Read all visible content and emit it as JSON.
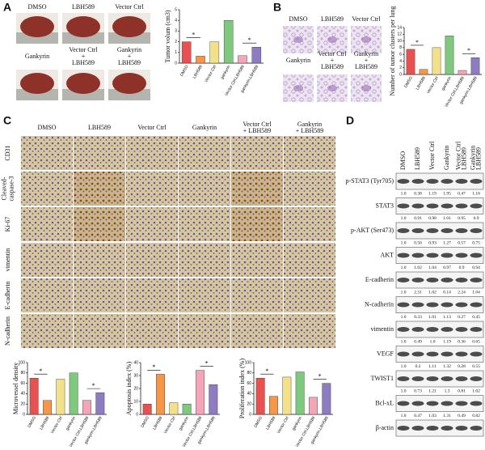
{
  "panel_labels": [
    "A",
    "B",
    "C",
    "D"
  ],
  "panel_a": {
    "photo_labels": [
      [
        "DMSO"
      ],
      [
        "LBH589"
      ],
      [
        "Vector Ctrl"
      ],
      [
        "Gankyrin"
      ],
      [
        "Vector Ctrl",
        "+",
        "LBH589"
      ],
      [
        "Gankyrin",
        "+",
        "LBH589"
      ]
    ]
  },
  "panel_b": {
    "photo_labels": [
      [
        "DMSO"
      ],
      [
        "LBH589"
      ],
      [
        "Vector Ctrl"
      ],
      [
        "Gankyrin"
      ],
      [
        "Vector Ctrl",
        "+",
        "LBH589"
      ],
      [
        "Gankyrin",
        "+",
        "LBH589"
      ]
    ]
  },
  "panel_c": {
    "column_labels": [
      [
        "DMSO"
      ],
      [
        "LBH589"
      ],
      [
        "Vector Ctrl"
      ],
      [
        "Gankyrin"
      ],
      [
        "Vector Ctrl",
        "+ LBH589"
      ],
      [
        "Gankyrin",
        "+ LBH589"
      ]
    ],
    "row_labels": [
      [
        "CD31"
      ],
      [
        "Cleaved-",
        "caspase-3"
      ],
      [
        "Ki-67"
      ],
      [
        "vimentin"
      ],
      [
        "E-cadherin"
      ],
      [
        "N-cadherin"
      ]
    ]
  },
  "panel_d": {
    "column_labels": [
      [
        "DMSO"
      ],
      [
        "LBH589"
      ],
      [
        "Vector Ctrl"
      ],
      [
        "Gankyrin"
      ],
      [
        "Vector Ctrl",
        "LBH589"
      ],
      [
        "Gankyrin",
        "LBH589"
      ]
    ],
    "rows": [
      {
        "label": "p-STAT3 (Tyr705)",
        "values": [
          "1.0",
          "0.38",
          "1.19",
          "1.95",
          "0.47",
          "1.16"
        ]
      },
      {
        "label": "STAT3",
        "values": [
          "1.0",
          "0.91",
          "0.98",
          "1.01",
          "0.95",
          "0.9"
        ]
      },
      {
        "label": "p-AKT (Ser473)",
        "values": [
          "1.0",
          "0.56",
          "0.93",
          "1.27",
          "0.57",
          "0.75"
        ]
      },
      {
        "label": "AKT",
        "values": [
          "1.0",
          "1.02",
          "1.04",
          "0.97",
          "0.9",
          "0.94"
        ]
      },
      {
        "label": "E-cadherin",
        "values": [
          "1.0",
          "2.31",
          "1.02",
          "0.14",
          "2.24",
          "1.04"
        ]
      },
      {
        "label": "N-cadherin",
        "values": [
          "1.0",
          "0.33",
          "1.01",
          "1.13",
          "0.27",
          "0.45"
        ]
      },
      {
        "label": "vimentin",
        "values": [
          "1.0",
          "0.49",
          "1.0",
          "1.19",
          "0.36",
          "0.65"
        ]
      },
      {
        "label": "VEGF",
        "values": [
          "1.0",
          "0.2",
          "1.11",
          "1.32",
          "0.28",
          "0.55"
        ]
      },
      {
        "label": "TWIST1",
        "values": [
          "1.0",
          "0.73",
          "1.21",
          "1.3",
          "0.81",
          "1.02"
        ]
      },
      {
        "label": "Bcl-xL",
        "values": [
          "1.0",
          "0.47",
          "1.03",
          "1.31",
          "0.49",
          "0.82"
        ]
      },
      {
        "label": "β-actin"
      }
    ]
  },
  "chart_data": [
    {
      "type": "bar",
      "ylabel": "Tumor volum (cm3)",
      "categories": [
        "DMSO",
        "LBH589",
        "Vector Ctrl",
        "gankyrin",
        "Vector Ctrl,LBH589",
        "gankyrin,LBH589"
      ],
      "values": [
        2.0,
        0.65,
        2.0,
        4.0,
        0.7,
        1.5
      ],
      "colors": [
        "#e8514f",
        "#f79646",
        "#f2e08a",
        "#7fc97f",
        "#f4a6b8",
        "#8e7cc3"
      ],
      "ylim": [
        0,
        5
      ],
      "yticks": [
        0,
        1,
        2,
        3,
        4,
        5
      ],
      "annotations": [
        "*",
        "*"
      ]
    },
    {
      "type": "bar",
      "ylabel": "Number of tumor clusters per lung",
      "categories": [
        "DMSO",
        "LBH589",
        "Vector Ctrl",
        "gankyrin",
        "Vector Ctrl,LBH589",
        "gankyrin,LBH589"
      ],
      "values": [
        7.5,
        1.5,
        8,
        11.5,
        1.2,
        5
      ],
      "colors": [
        "#e8514f",
        "#f79646",
        "#f2e08a",
        "#7fc97f",
        "#f4a6b8",
        "#8e7cc3"
      ],
      "ylim": [
        0,
        14
      ],
      "yticks": [
        0,
        2,
        4,
        6,
        8,
        10,
        12,
        14
      ],
      "annotations": [
        "*",
        "*"
      ]
    },
    {
      "type": "bar",
      "ylabel": "Microvessel density",
      "categories": [
        "DMSO",
        "LBH589",
        "Vector Ctrl",
        "gankyrin",
        "Vector Ctrl,LBH589",
        "gankyrin,LBH589"
      ],
      "values": [
        70,
        27,
        68,
        80,
        27,
        42
      ],
      "colors": [
        "#e8514f",
        "#f79646",
        "#f2e08a",
        "#7fc97f",
        "#f4a6b8",
        "#8e7cc3"
      ],
      "ylim": [
        0,
        100
      ],
      "yticks": [
        0,
        20,
        40,
        60,
        80,
        100
      ],
      "annotations": [
        "*",
        "*"
      ]
    },
    {
      "type": "bar",
      "ylabel": "Apoptosis index (%)",
      "categories": [
        "DMSO",
        "LBH589",
        "Vector Ctrl",
        "gankyrin",
        "Vector Ctrl,LBH589",
        "gankyrin,LBH589"
      ],
      "values": [
        8,
        31,
        9,
        8,
        34,
        23
      ],
      "colors": [
        "#e8514f",
        "#f79646",
        "#f2e08a",
        "#7fc97f",
        "#f4a6b8",
        "#8e7cc3"
      ],
      "ylim": [
        0,
        40
      ],
      "yticks": [
        0,
        10,
        20,
        30,
        40
      ],
      "annotations": [
        "*",
        "*"
      ]
    },
    {
      "type": "bar",
      "ylabel": "Proliferation index (%)",
      "categories": [
        "DMSO",
        "LBH589",
        "Vector Ctrl",
        "gankyrin",
        "Vector Ctrl,LBH589",
        "gankyrin,LBH589"
      ],
      "values": [
        70,
        35,
        72,
        82,
        33,
        60
      ],
      "colors": [
        "#e8514f",
        "#f79646",
        "#f2e08a",
        "#7fc97f",
        "#f4a6b8",
        "#8e7cc3"
      ],
      "ylim": [
        0,
        100
      ],
      "yticks": [
        0,
        20,
        40,
        60,
        80,
        100
      ],
      "annotations": [
        "*",
        "*"
      ]
    }
  ]
}
